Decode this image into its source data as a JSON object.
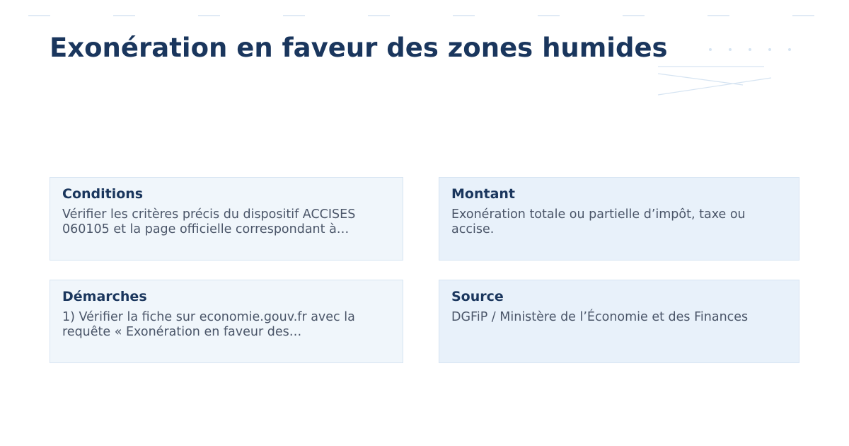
{
  "page": {
    "title": "Exonération en faveur des zones humides"
  },
  "cards": [
    {
      "heading": "Conditions",
      "text": "Vérifier les critères précis du dispositif ACCISES 060105 et la page officielle correspondant à…"
    },
    {
      "heading": "Montant",
      "text": "Exonération totale ou partielle d’impôt, taxe ou accise."
    },
    {
      "heading": "Démarches",
      "text": "1) Vérifier la fiche sur economie.gouv.fr avec la requête « Exonération en faveur des…"
    },
    {
      "heading": "Source",
      "text": "DGFiP / Ministère de l’Économie et des Finances"
    }
  ],
  "colors": {
    "title": "#1a365d",
    "text": "#4a5568",
    "decoration": "#d6e4f2"
  }
}
